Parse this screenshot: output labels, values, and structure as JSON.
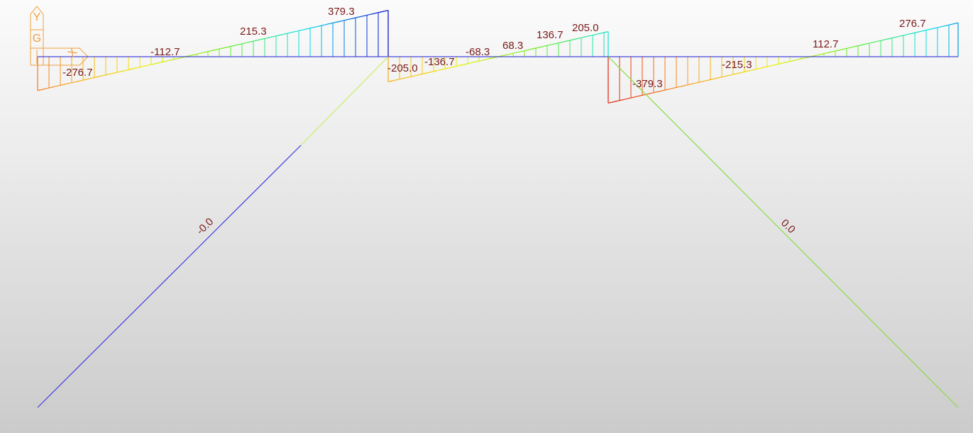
{
  "colors": {
    "label_text": "#7a1a1a",
    "axis_icon": "#f0a040",
    "beam_axis": "#1a1ad0",
    "scale": [
      "#0000c8",
      "#00e0f0",
      "#66ee22",
      "#f0f000",
      "#f8a020",
      "#e02010"
    ]
  },
  "axis_icon": {
    "y_label": "Y",
    "g_label": "G",
    "x_label": "X"
  },
  "diagram": {
    "spans": [
      {
        "name": "span-1",
        "value_start": -276.7,
        "value_end": 379.3
      },
      {
        "name": "span-2",
        "value_start": -205.0,
        "value_end": 205.0
      },
      {
        "name": "span-3",
        "value_start": -379.3,
        "value_end": 276.7
      }
    ],
    "value_labels": [
      {
        "text": "-276.7",
        "color": "#7a1a1a"
      },
      {
        "text": "-112.7",
        "color": "#7a1a1a"
      },
      {
        "text": "215.3",
        "color": "#7a1a1a"
      },
      {
        "text": "379.3",
        "color": "#7a1a1a"
      },
      {
        "text": "-205.0",
        "color": "#7a1a1a"
      },
      {
        "text": "-136.7",
        "color": "#7a1a1a"
      },
      {
        "text": "-68.3",
        "color": "#7a1a1a"
      },
      {
        "text": "68.3",
        "color": "#7a1a1a"
      },
      {
        "text": "136.7",
        "color": "#7a1a1a"
      },
      {
        "text": "205.0",
        "color": "#7a1a1a"
      },
      {
        "text": "-379.3",
        "color": "#7a1a1a"
      },
      {
        "text": "-215.3",
        "color": "#7a1a1a"
      },
      {
        "text": "112.7",
        "color": "#7a1a1a"
      },
      {
        "text": "276.7",
        "color": "#7a1a1a"
      }
    ],
    "column_labels": [
      {
        "text": "-0.0"
      },
      {
        "text": "0.0"
      }
    ]
  }
}
